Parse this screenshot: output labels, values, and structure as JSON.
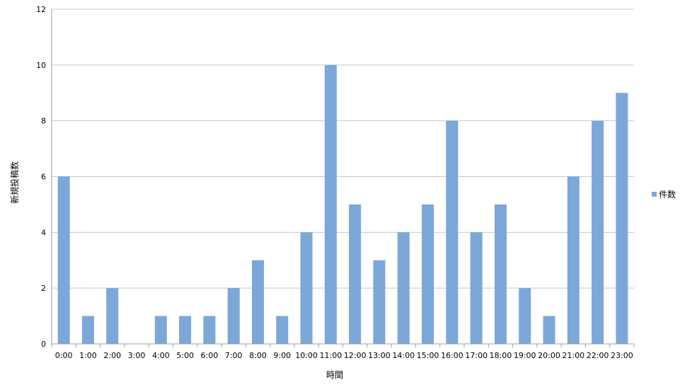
{
  "chart_data": {
    "type": "bar",
    "categories": [
      "0:00",
      "1:00",
      "2:00",
      "3:00",
      "4:00",
      "5:00",
      "6:00",
      "7:00",
      "8:00",
      "9:00",
      "10:00",
      "11:00",
      "12:00",
      "13:00",
      "14:00",
      "15:00",
      "16:00",
      "17:00",
      "18:00",
      "19:00",
      "20:00",
      "21:00",
      "22:00",
      "23:00"
    ],
    "series": [
      {
        "name": "件数",
        "values": [
          6,
          1,
          2,
          0,
          1,
          1,
          1,
          2,
          3,
          1,
          4,
          10,
          5,
          3,
          4,
          5,
          8,
          4,
          5,
          2,
          1,
          6,
          8,
          9
        ]
      }
    ],
    "title": "",
    "xlabel": "時間",
    "ylabel": "新規投稿数",
    "ylim": [
      0,
      12
    ],
    "yticks": [
      0,
      2,
      4,
      6,
      8,
      10,
      12
    ],
    "grid": true,
    "legend_position": "right",
    "colors": {
      "bar": "#7BA7D9",
      "grid": "#C8C8C8",
      "axis": "#A0A0A0"
    }
  }
}
